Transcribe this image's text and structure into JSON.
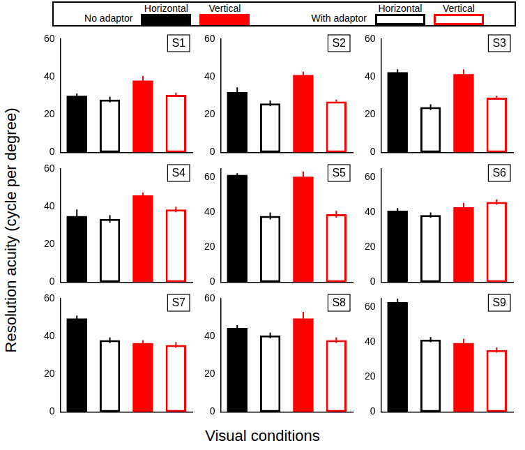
{
  "chart_data": [
    {
      "type": "bar",
      "title": "S1",
      "categories": [
        "Horizontal",
        "Vertical"
      ],
      "series": [
        {
          "name": "No adaptor",
          "colors": [
            "#000000",
            "#ff0000"
          ],
          "marker": "filled",
          "values": [
            30,
            38
          ],
          "errors": [
            1.2,
            2.5
          ]
        },
        {
          "name": "With adaptor",
          "colors": [
            "#000000",
            "#ff0000"
          ],
          "marker": "hollow",
          "values": [
            28,
            30.5
          ],
          "errors": [
            1.5,
            1.2
          ]
        }
      ],
      "ylim": [
        0,
        60
      ],
      "yticks": [
        0,
        20,
        40,
        60
      ],
      "tick_labels": "y"
    },
    {
      "type": "bar",
      "title": "S2",
      "categories": [
        "Horizontal",
        "Vertical"
      ],
      "series": [
        {
          "name": "No adaptor",
          "colors": [
            "#000000",
            "#ff0000"
          ],
          "marker": "filled",
          "values": [
            32,
            41
          ],
          "errors": [
            2.5,
            1.8
          ]
        },
        {
          "name": "With adaptor",
          "colors": [
            "#000000",
            "#ff0000"
          ],
          "marker": "hollow",
          "values": [
            26,
            27
          ],
          "errors": [
            1.5,
            1
          ]
        }
      ],
      "ylim": [
        0,
        60
      ],
      "yticks": [
        0,
        20,
        40,
        60
      ],
      "tick_labels": "y"
    },
    {
      "type": "bar",
      "title": "S3",
      "categories": [
        "Horizontal",
        "Vertical"
      ],
      "series": [
        {
          "name": "No adaptor",
          "colors": [
            "#000000",
            "#ff0000"
          ],
          "marker": "filled",
          "values": [
            42.5,
            41.5
          ],
          "errors": [
            1.5,
            2.5
          ]
        },
        {
          "name": "With adaptor",
          "colors": [
            "#000000",
            "#ff0000"
          ],
          "marker": "hollow",
          "values": [
            24,
            29
          ],
          "errors": [
            1.5,
            1
          ]
        }
      ],
      "ylim": [
        0,
        60
      ],
      "yticks": [
        0,
        20,
        40,
        60
      ],
      "tick_labels": "y"
    },
    {
      "type": "bar",
      "title": "S4",
      "categories": [
        "Horizontal",
        "Vertical"
      ],
      "series": [
        {
          "name": "No adaptor",
          "colors": [
            "#000000",
            "#ff0000"
          ],
          "marker": "filled",
          "values": [
            35,
            46
          ],
          "errors": [
            3.5,
            1.5
          ]
        },
        {
          "name": "With adaptor",
          "colors": [
            "#000000",
            "#ff0000"
          ],
          "marker": "hollow",
          "values": [
            33.5,
            38.5
          ],
          "errors": [
            2,
            1.5
          ]
        }
      ],
      "ylim": [
        0,
        60
      ],
      "yticks": [
        0,
        20,
        40,
        60
      ],
      "tick_labels": "y"
    },
    {
      "type": "bar",
      "title": "S5",
      "categories": [
        "Horizontal",
        "Vertical"
      ],
      "series": [
        {
          "name": "No adaptor",
          "colors": [
            "#000000",
            "#ff0000"
          ],
          "marker": "filled",
          "values": [
            61.5,
            60.5
          ],
          "errors": [
            1,
            3
          ]
        },
        {
          "name": "With adaptor",
          "colors": [
            "#000000",
            "#ff0000"
          ],
          "marker": "hollow",
          "values": [
            38,
            39
          ],
          "errors": [
            2,
            2
          ]
        }
      ],
      "ylim": [
        0,
        65
      ],
      "yticks": [
        0,
        20,
        40,
        60
      ],
      "tick_labels": "y"
    },
    {
      "type": "bar",
      "title": "S6",
      "categories": [
        "Horizontal",
        "Vertical"
      ],
      "series": [
        {
          "name": "No adaptor",
          "colors": [
            "#000000",
            "#ff0000"
          ],
          "marker": "filled",
          "values": [
            41,
            43
          ],
          "errors": [
            1.5,
            2.5
          ]
        },
        {
          "name": "With adaptor",
          "colors": [
            "#000000",
            "#ff0000"
          ],
          "marker": "hollow",
          "values": [
            38.5,
            46
          ],
          "errors": [
            1.5,
            1.5
          ]
        }
      ],
      "ylim": [
        0,
        65
      ],
      "yticks": [
        0,
        20,
        40,
        60
      ],
      "tick_labels": "y"
    },
    {
      "type": "bar",
      "title": "S7",
      "categories": [
        "Horizontal",
        "Vertical"
      ],
      "series": [
        {
          "name": "No adaptor",
          "colors": [
            "#000000",
            "#ff0000"
          ],
          "marker": "filled",
          "values": [
            49.5,
            36.5
          ],
          "errors": [
            1.5,
            1.5
          ]
        },
        {
          "name": "With adaptor",
          "colors": [
            "#000000",
            "#ff0000"
          ],
          "marker": "hollow",
          "values": [
            38,
            35.5
          ],
          "errors": [
            1.5,
            1.5
          ]
        }
      ],
      "ylim": [
        0,
        60
      ],
      "yticks": [
        0,
        20,
        40,
        60
      ],
      "tick_labels": "y"
    },
    {
      "type": "bar",
      "title": "S8",
      "categories": [
        "Horizontal",
        "Vertical"
      ],
      "series": [
        {
          "name": "No adaptor",
          "colors": [
            "#000000",
            "#ff0000"
          ],
          "marker": "filled",
          "values": [
            44.5,
            49.5
          ],
          "errors": [
            1.5,
            3.5
          ]
        },
        {
          "name": "With adaptor",
          "colors": [
            "#000000",
            "#ff0000"
          ],
          "marker": "hollow",
          "values": [
            40.5,
            38
          ],
          "errors": [
            1.5,
            1.5
          ]
        }
      ],
      "ylim": [
        0,
        60
      ],
      "yticks": [
        0,
        20,
        40,
        60
      ],
      "tick_labels": "y"
    },
    {
      "type": "bar",
      "title": "S9",
      "categories": [
        "Horizontal",
        "Vertical"
      ],
      "series": [
        {
          "name": "No adaptor",
          "colors": [
            "#000000",
            "#ff0000"
          ],
          "marker": "filled",
          "values": [
            63,
            39.5
          ],
          "errors": [
            2,
            2.5
          ]
        },
        {
          "name": "With adaptor",
          "colors": [
            "#000000",
            "#ff0000"
          ],
          "marker": "hollow",
          "values": [
            41.5,
            35.5
          ],
          "errors": [
            1.5,
            1.5
          ]
        }
      ],
      "ylim": [
        0,
        65
      ],
      "yticks": [
        0,
        20,
        40,
        60
      ],
      "tick_labels": "y"
    }
  ],
  "figure": {
    "xlabel": "Visual conditions",
    "ylabel": "Resolution acuity (cycle per degree)",
    "legend": "top"
  }
}
